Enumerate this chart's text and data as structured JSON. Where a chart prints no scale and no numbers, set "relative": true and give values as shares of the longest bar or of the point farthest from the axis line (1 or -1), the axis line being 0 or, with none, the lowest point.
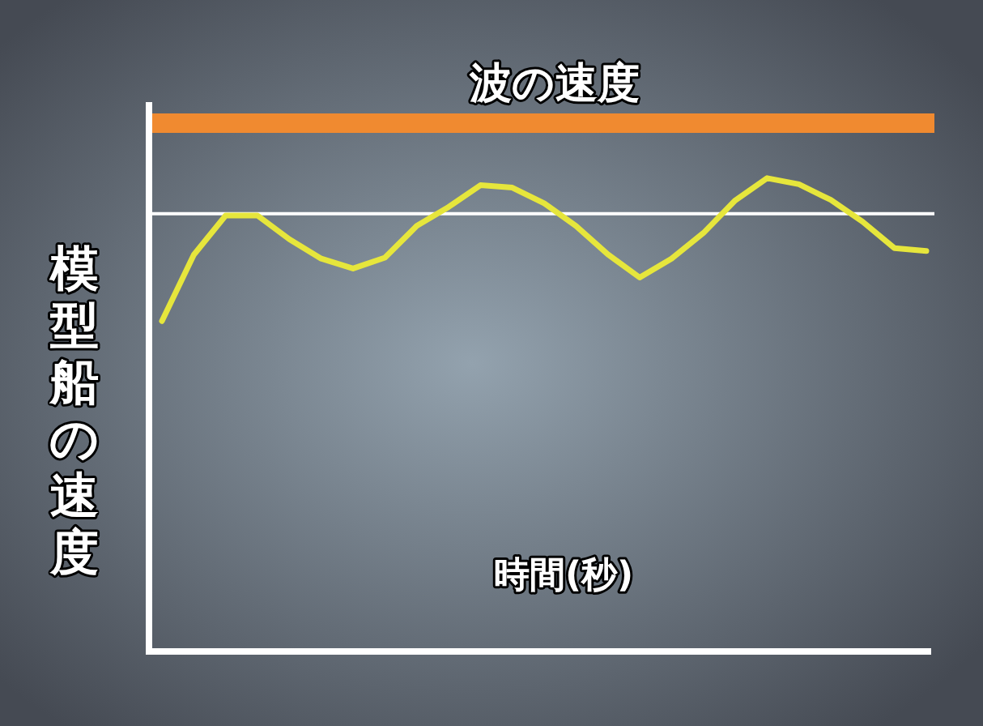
{
  "chart_data": {
    "type": "line",
    "relative": true,
    "xlabel": "時間(秒)",
    "ylabel": "模型船の速度",
    "categories": [
      null,
      null,
      null,
      null,
      null,
      null,
      null,
      null,
      null,
      null,
      null,
      null,
      null,
      null,
      null,
      null,
      null,
      null,
      null,
      null,
      null,
      null,
      null,
      null,
      null
    ],
    "series": [
      {
        "color": "#e6e63c",
        "values": [
          0.698,
          0.838,
          0.921,
          0.921,
          0.871,
          0.83,
          0.809,
          0.832,
          0.899,
          0.939,
          0.985,
          0.98,
          0.947,
          0.899,
          0.839,
          0.79,
          0.83,
          0.884,
          0.953,
          1.0,
          0.987,
          0.954,
          0.908,
          0.852,
          0.846
        ]
      }
    ],
    "ref_lines": [
      {
        "axis": "y",
        "value": 1.116,
        "label": "波の速度",
        "color": "#f08a30"
      },
      {
        "axis": "y",
        "value": 0.925,
        "label": null,
        "color": "#ffffff"
      }
    ],
    "marker": "none",
    "line_style": "solid"
  }
}
